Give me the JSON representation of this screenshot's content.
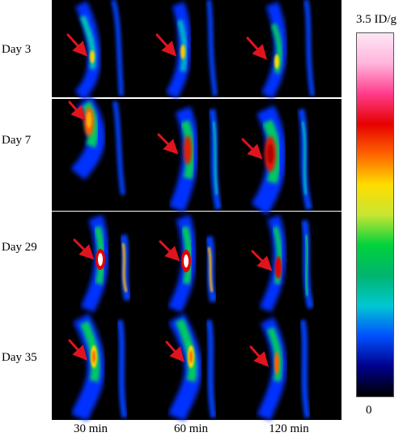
{
  "figure": {
    "row_labels": [
      "Day 3",
      "Day 7",
      "Day 29",
      "Day 35"
    ],
    "col_labels": [
      "30 min",
      "60 min",
      "120 min"
    ],
    "colorbar": {
      "max_label": "3.5 ID/g",
      "min_label": "0",
      "stops": [
        "#000000",
        "#00008c",
        "#0050ff",
        "#00c8d2",
        "#00b46e",
        "#00d23c",
        "#c8e632",
        "#ffdc00",
        "#ff6400",
        "#e60000",
        "#ff3c8c",
        "#ffb4dc",
        "#ffe6f5"
      ]
    },
    "arrow_color": "#e0141e"
  }
}
